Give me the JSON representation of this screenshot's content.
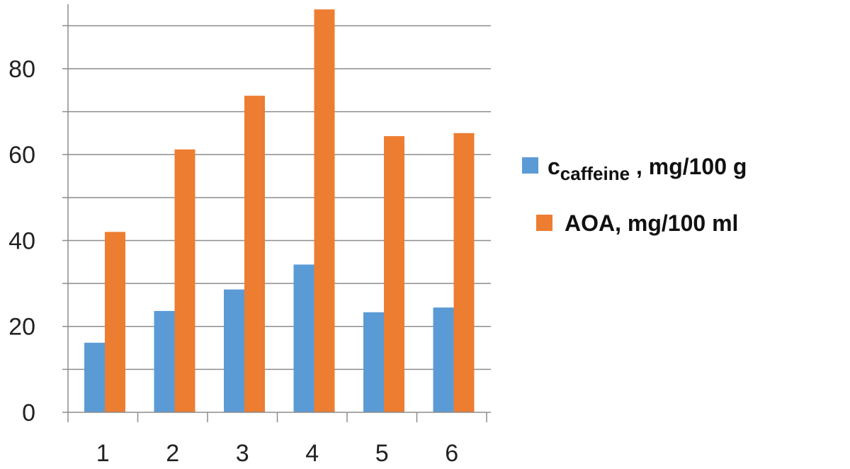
{
  "chart_data": {
    "type": "bar",
    "categories": [
      "1",
      "2",
      "3",
      "4",
      "5",
      "6"
    ],
    "series": [
      {
        "name": "c",
        "name_subscript": "caffeine",
        "name_suffix": " , mg/100 g",
        "color": "#5b9bd5",
        "values": [
          16.2,
          23.6,
          28.6,
          34.4,
          23.3,
          24.4
        ]
      },
      {
        "name": "AOA, mg/100 ml",
        "color": "#ed7d31",
        "values": [
          42.0,
          61.2,
          73.7,
          93.8,
          64.3,
          65.0
        ]
      }
    ],
    "ylim": [
      0,
      95
    ],
    "yticks": [
      0,
      20,
      40,
      60,
      80
    ],
    "grid": true,
    "legend_position": "right",
    "title": "",
    "xlabel": "",
    "ylabel": ""
  }
}
